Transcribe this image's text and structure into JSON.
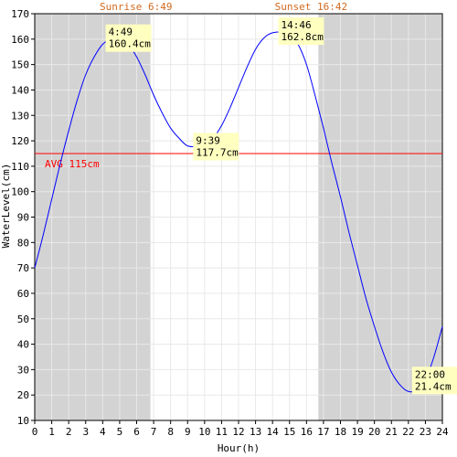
{
  "chart_data": {
    "type": "line",
    "xlabel": "Hour(h)",
    "ylabel": "WaterLevel(cm)",
    "xlim": [
      0,
      24
    ],
    "ylim": [
      10,
      170
    ],
    "x_ticks": [
      0,
      1,
      2,
      3,
      4,
      5,
      6,
      7,
      8,
      9,
      10,
      11,
      12,
      13,
      14,
      15,
      16,
      17,
      18,
      19,
      20,
      21,
      22,
      23,
      24
    ],
    "y_ticks": [
      10,
      20,
      30,
      40,
      50,
      60,
      70,
      80,
      90,
      100,
      110,
      120,
      130,
      140,
      150,
      160,
      170
    ],
    "grid": true,
    "sunrise_label": "Sunrise 6:49",
    "sunset_label": "Sunset 16:42",
    "sunrise_hour": 6.82,
    "sunset_hour": 16.7,
    "average": {
      "label": "AVG 115cm",
      "value": 115
    },
    "extrema": [
      {
        "hour": 4.82,
        "value": 160.4,
        "time_label": "4:49",
        "value_label": "160.4cm"
      },
      {
        "hour": 9.65,
        "value": 117.7,
        "time_label": "9:39",
        "value_label": "117.7cm"
      },
      {
        "hour": 14.77,
        "value": 162.8,
        "time_label": "14:46",
        "value_label": "162.8cm"
      },
      {
        "hour": 22.0,
        "value": 21.4,
        "time_label": "22:00",
        "value_label": "21.4cm"
      }
    ],
    "series": [
      {
        "x": [
          0,
          0.5,
          1,
          1.5,
          2,
          2.5,
          3,
          3.5,
          4,
          4.5,
          4.82,
          5,
          5.5,
          6,
          6.5,
          7,
          7.5,
          8,
          8.5,
          9,
          9.65,
          10,
          10.5,
          11,
          11.5,
          12,
          12.5,
          13,
          13.5,
          14,
          14.77,
          15,
          15.5,
          16,
          16.5,
          17,
          17.5,
          18,
          18.5,
          19,
          19.5,
          20,
          20.5,
          21,
          21.5,
          22,
          22.5,
          23,
          23.5,
          24
        ],
        "y": [
          70,
          83,
          97,
          111,
          124,
          136,
          146,
          153,
          158,
          160,
          160.4,
          160,
          158,
          153,
          146,
          138,
          131,
          125,
          121,
          118,
          117.7,
          118,
          121,
          126,
          133,
          141,
          149,
          156,
          160.5,
          162.5,
          162.8,
          162,
          158,
          150,
          138,
          125,
          111,
          98,
          84,
          71,
          58,
          47,
          37,
          29,
          24,
          21.4,
          22,
          26,
          35,
          47
        ]
      }
    ],
    "colors": {
      "line": "#0000ff",
      "avg_line": "#ff0000",
      "night_band": "#d3d3d3",
      "day_band": "#ffffff",
      "label_box": "#ffffc0",
      "sun_text": "#d2691e",
      "grid": "#e8e8e8"
    }
  }
}
